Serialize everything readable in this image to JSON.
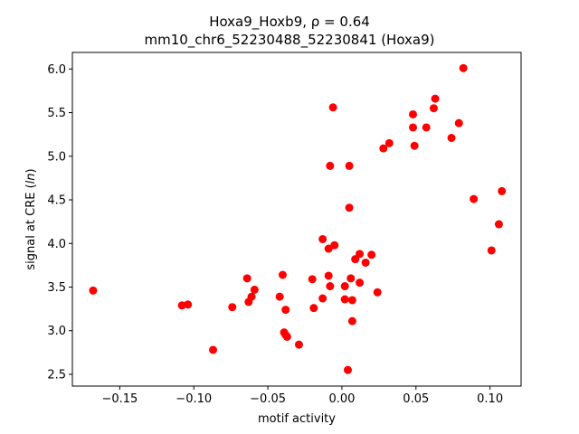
{
  "chart_data": {
    "type": "scatter",
    "title_line1": "Hoxa9_Hoxb9, ρ = 0.64",
    "title_line2": "mm10_chr6_52230488_52230841 (Hoxa9)",
    "xlabel": "motif activity",
    "ylabel_prefix": "signal at CRE (",
    "ylabel_italic": "ln",
    "ylabel_suffix": ")",
    "xlim": [
      -0.182,
      0.121
    ],
    "ylim": [
      2.365,
      6.19
    ],
    "xticks": [
      -0.15,
      -0.1,
      -0.05,
      0.0,
      0.05,
      0.1
    ],
    "xtick_labels": [
      "−0.15",
      "−0.10",
      "−0.05",
      "0.00",
      "0.05",
      "0.10"
    ],
    "yticks": [
      2.5,
      3.0,
      3.5,
      4.0,
      4.5,
      5.0,
      5.5,
      6.0
    ],
    "ytick_labels": [
      "2.5",
      "3.0",
      "3.5",
      "4.0",
      "4.5",
      "5.0",
      "5.5",
      "6.0"
    ],
    "grid": false,
    "marker_color": "#ff0000",
    "points": [
      {
        "x": -0.168,
        "y": 3.46
      },
      {
        "x": -0.108,
        "y": 3.29
      },
      {
        "x": -0.104,
        "y": 3.3
      },
      {
        "x": -0.087,
        "y": 2.78
      },
      {
        "x": -0.074,
        "y": 3.27
      },
      {
        "x": -0.064,
        "y": 3.6
      },
      {
        "x": -0.063,
        "y": 3.33
      },
      {
        "x": -0.061,
        "y": 3.39
      },
      {
        "x": -0.059,
        "y": 3.47
      },
      {
        "x": -0.042,
        "y": 3.39
      },
      {
        "x": -0.04,
        "y": 3.64
      },
      {
        "x": -0.039,
        "y": 2.98
      },
      {
        "x": -0.038,
        "y": 3.24
      },
      {
        "x": -0.038,
        "y": 2.95
      },
      {
        "x": -0.037,
        "y": 2.93
      },
      {
        "x": -0.029,
        "y": 2.84
      },
      {
        "x": -0.02,
        "y": 3.59
      },
      {
        "x": -0.019,
        "y": 3.26
      },
      {
        "x": -0.013,
        "y": 4.05
      },
      {
        "x": -0.013,
        "y": 3.37
      },
      {
        "x": -0.009,
        "y": 3.94
      },
      {
        "x": -0.009,
        "y": 3.63
      },
      {
        "x": -0.008,
        "y": 3.51
      },
      {
        "x": -0.008,
        "y": 4.89
      },
      {
        "x": -0.006,
        "y": 5.56
      },
      {
        "x": -0.005,
        "y": 3.98
      },
      {
        "x": 0.002,
        "y": 3.51
      },
      {
        "x": 0.002,
        "y": 3.36
      },
      {
        "x": 0.004,
        "y": 2.55
      },
      {
        "x": 0.005,
        "y": 4.89
      },
      {
        "x": 0.005,
        "y": 4.41
      },
      {
        "x": 0.006,
        "y": 3.6
      },
      {
        "x": 0.007,
        "y": 3.35
      },
      {
        "x": 0.007,
        "y": 3.11
      },
      {
        "x": 0.009,
        "y": 3.82
      },
      {
        "x": 0.012,
        "y": 3.88
      },
      {
        "x": 0.012,
        "y": 3.55
      },
      {
        "x": 0.016,
        "y": 3.78
      },
      {
        "x": 0.02,
        "y": 3.87
      },
      {
        "x": 0.024,
        "y": 3.44
      },
      {
        "x": 0.028,
        "y": 5.09
      },
      {
        "x": 0.032,
        "y": 5.15
      },
      {
        "x": 0.048,
        "y": 5.48
      },
      {
        "x": 0.048,
        "y": 5.33
      },
      {
        "x": 0.049,
        "y": 5.12
      },
      {
        "x": 0.057,
        "y": 5.33
      },
      {
        "x": 0.062,
        "y": 5.55
      },
      {
        "x": 0.063,
        "y": 5.66
      },
      {
        "x": 0.074,
        "y": 5.21
      },
      {
        "x": 0.079,
        "y": 5.38
      },
      {
        "x": 0.082,
        "y": 6.01
      },
      {
        "x": 0.089,
        "y": 4.51
      },
      {
        "x": 0.101,
        "y": 3.92
      },
      {
        "x": 0.106,
        "y": 4.22
      },
      {
        "x": 0.108,
        "y": 4.6
      }
    ]
  }
}
